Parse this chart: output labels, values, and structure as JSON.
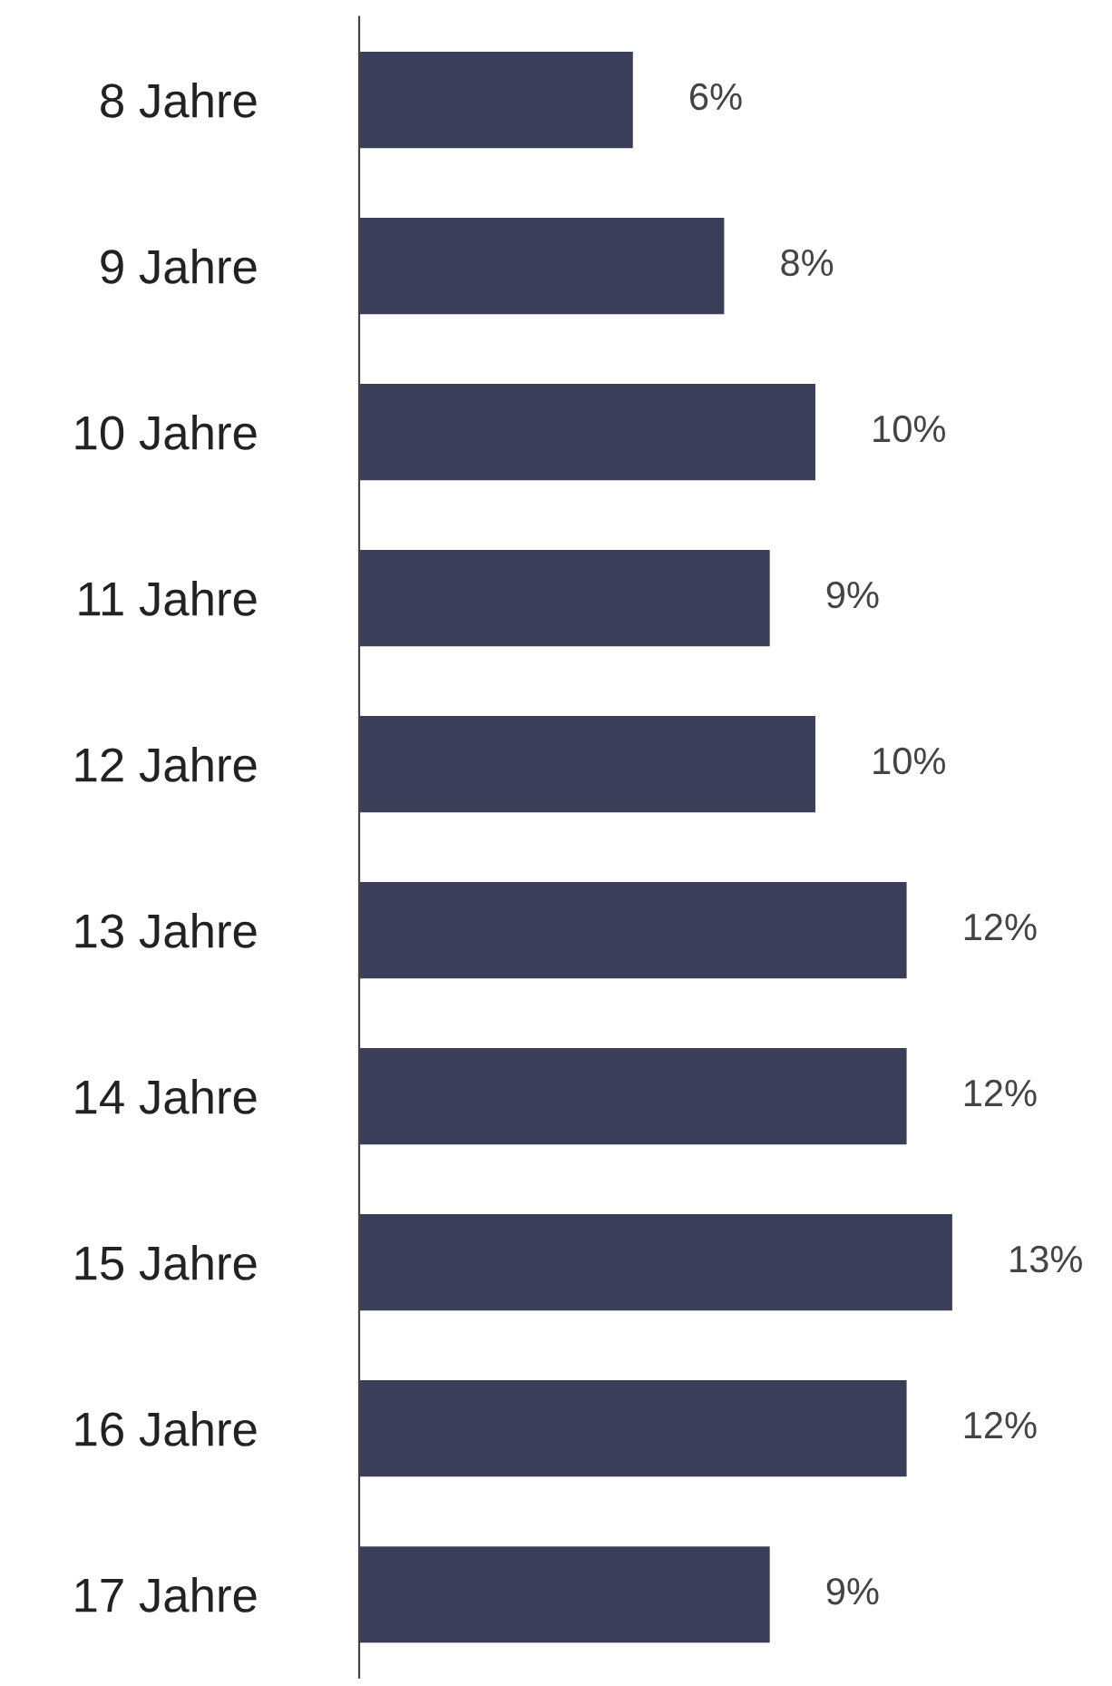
{
  "chart_data": {
    "type": "bar",
    "orientation": "horizontal",
    "categories": [
      "8 Jahre",
      "9 Jahre",
      "10 Jahre",
      "11 Jahre",
      "12 Jahre",
      "13 Jahre",
      "14 Jahre",
      "15 Jahre",
      "16 Jahre",
      "17 Jahre"
    ],
    "values": [
      6,
      8,
      10,
      9,
      10,
      12,
      12,
      13,
      12,
      9
    ],
    "value_labels": [
      "6%",
      "8%",
      "10%",
      "9%",
      "10%",
      "12%",
      "12%",
      "13%",
      "12%",
      "9%"
    ],
    "color": "#3b3e58",
    "tick_labels": "y",
    "grid": false,
    "legend": false
  }
}
